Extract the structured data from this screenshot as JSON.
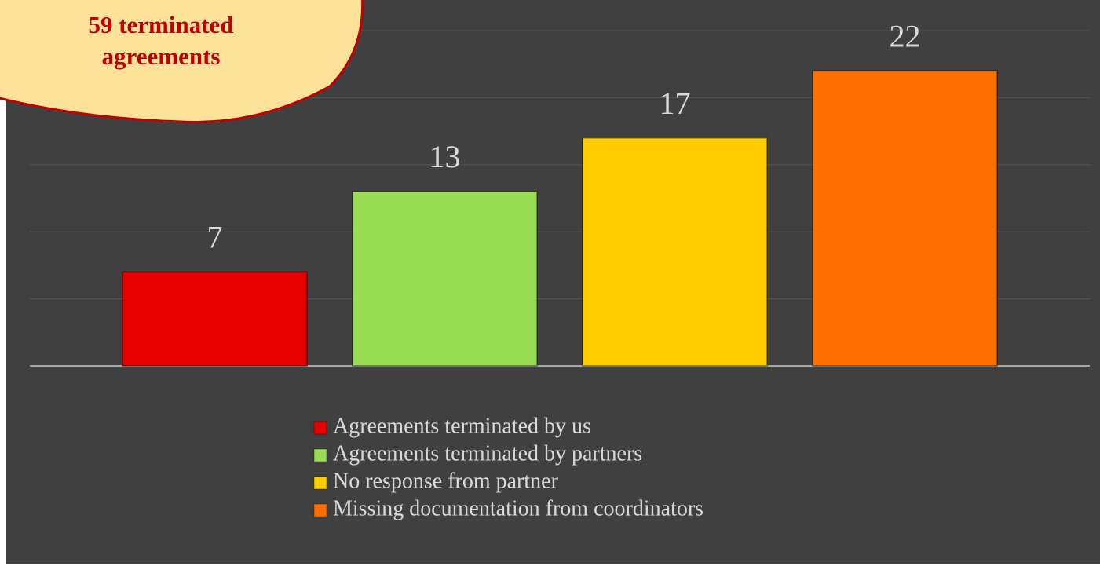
{
  "chart_data": {
    "type": "bar",
    "annotation": "59 terminated agreements",
    "categories": [
      null
    ],
    "series": [
      {
        "name": "Agreements terminated by us",
        "color": "#e60000",
        "values": [
          7
        ]
      },
      {
        "name": "Agreements terminated by partners",
        "color": "#99dd55",
        "values": [
          13
        ]
      },
      {
        "name": "No response from partner",
        "color": "#ffcc00",
        "values": [
          17
        ]
      },
      {
        "name": "Missing documentation from coordinators",
        "color": "#ff6f00",
        "values": [
          22
        ]
      }
    ],
    "ylim": [
      0,
      25
    ],
    "yticks": [
      0,
      5,
      10,
      15,
      20,
      25
    ],
    "grid": true
  }
}
